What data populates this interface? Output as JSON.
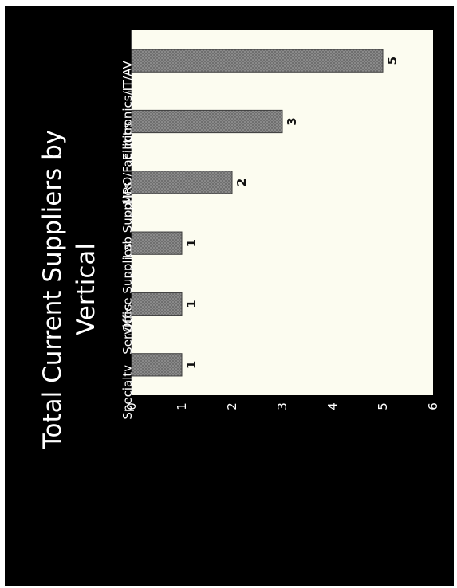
{
  "chart_data": {
    "type": "bar",
    "orientation": "horizontal",
    "title": "Total Current Suppliers by Vertical",
    "title_lines": [
      "Total Current Suppliers by",
      "Vertical"
    ],
    "categories": [
      "Specialty",
      "Services",
      "Office Supplies",
      "Lab Supplies",
      "MRO/Facilities",
      "Electronics/IT/AV"
    ],
    "values": [
      1,
      1,
      1,
      2,
      3,
      5
    ],
    "data_labels": [
      "1",
      "1",
      "1",
      "2",
      "3",
      "5"
    ],
    "value_axis": {
      "range": [
        0,
        6
      ],
      "ticks": [
        0,
        1,
        2,
        3,
        4,
        5,
        6
      ],
      "tick_labels": [
        "0",
        "1",
        "2",
        "3",
        "4",
        "5",
        "6"
      ]
    },
    "xlabel": "",
    "ylabel": "",
    "grid": false,
    "legend": "none",
    "colors": {
      "background": "#000000",
      "plot_area": "#fcfcf0",
      "bar": "#7a7a7a",
      "bar_edge": "#3c3c3c",
      "text": "#ffffff"
    }
  }
}
